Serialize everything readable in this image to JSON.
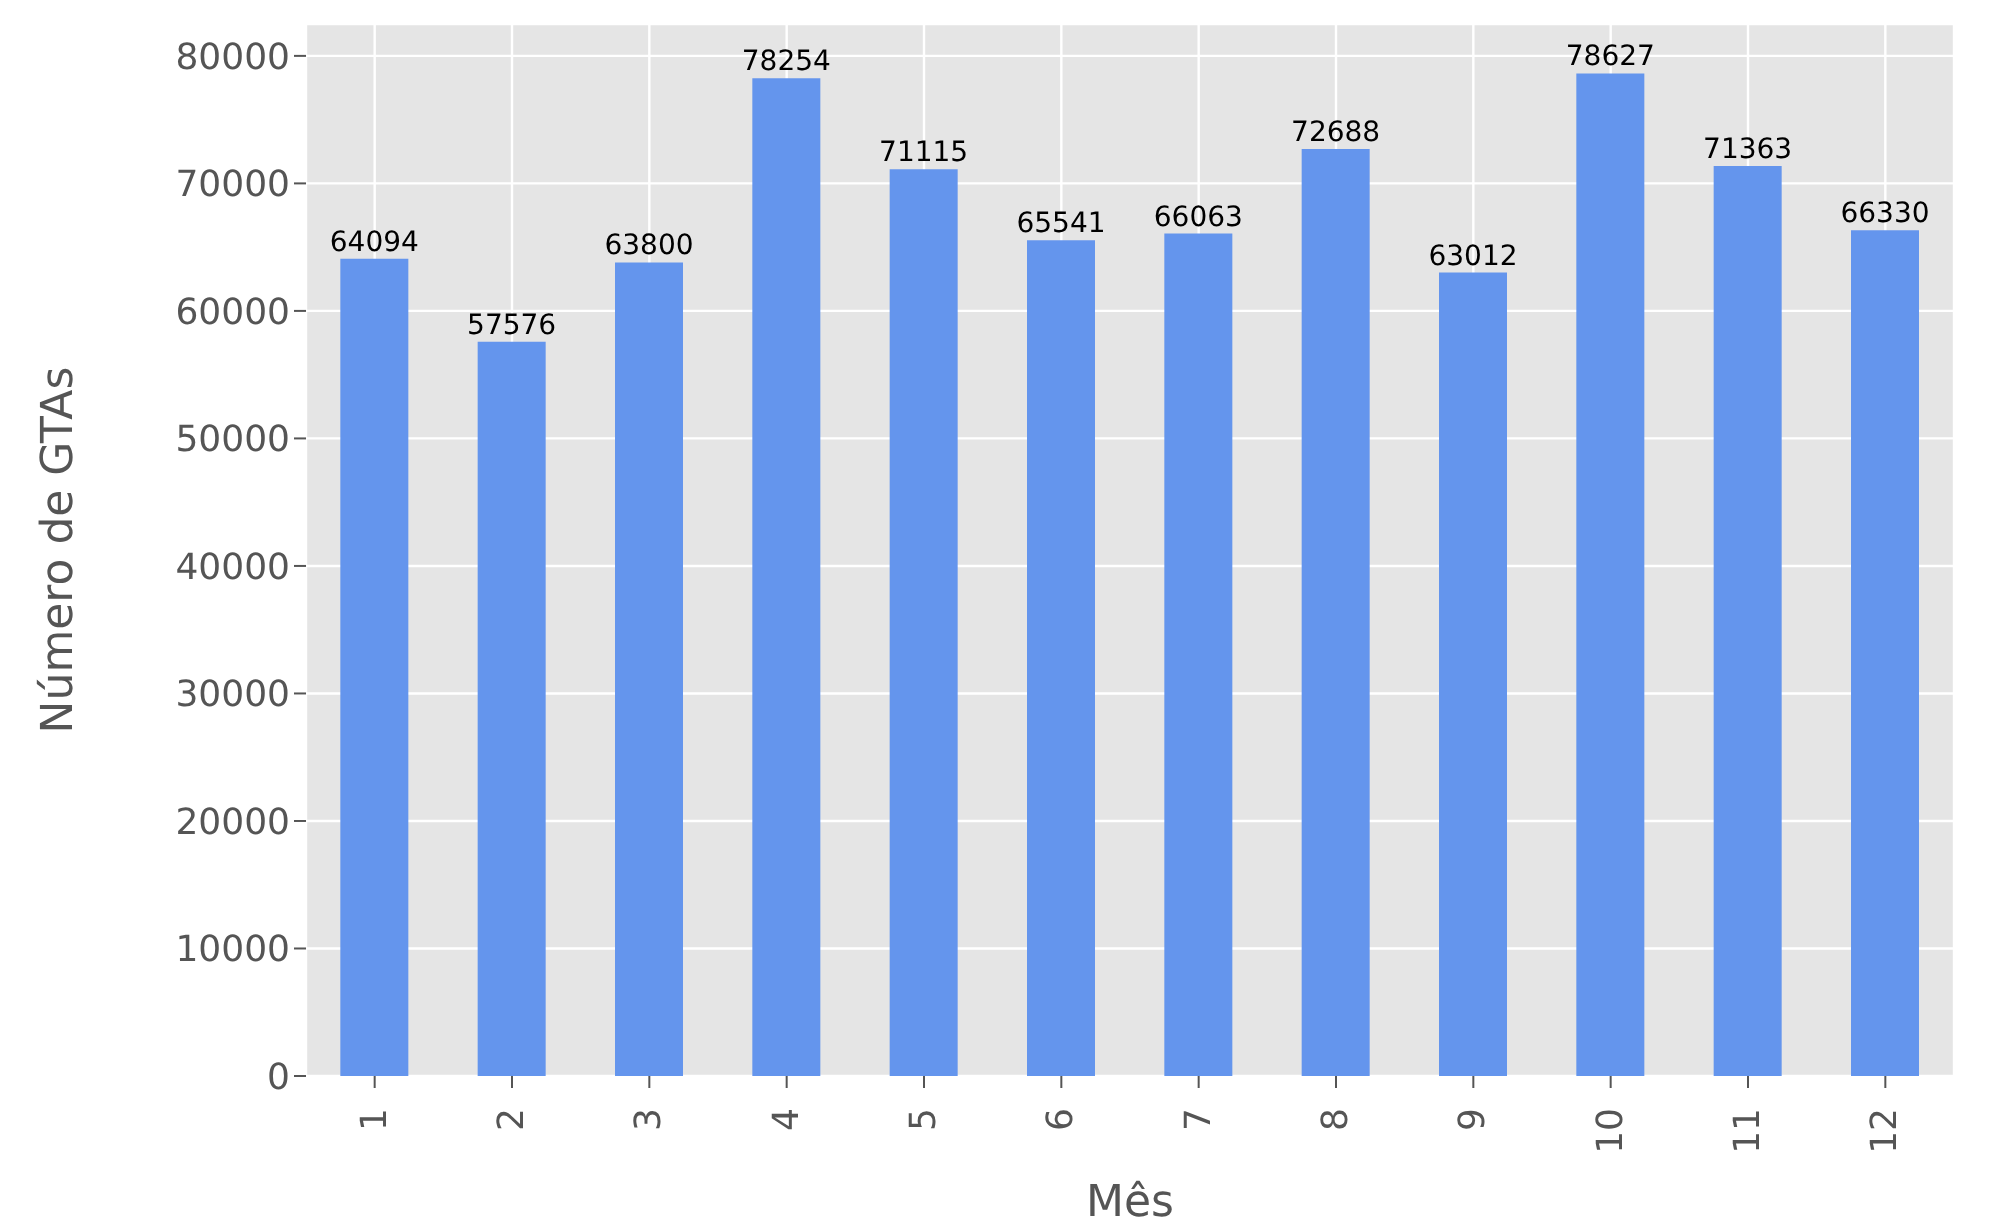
{
  "chart_data": {
    "type": "bar",
    "xlabel": "Mês",
    "ylabel": "Número de GTAs",
    "categories": [
      "1",
      "2",
      "3",
      "4",
      "5",
      "6",
      "7",
      "8",
      "9",
      "10",
      "11",
      "12"
    ],
    "values": [
      64094,
      57576,
      63800,
      78254,
      71115,
      65541,
      66063,
      72688,
      63012,
      78627,
      71363,
      66330
    ],
    "color": "#6495ed",
    "ylim": [
      0,
      82500
    ],
    "yticks": [
      0,
      10000,
      20000,
      30000,
      40000,
      50000,
      60000,
      70000,
      80000
    ],
    "grid": true,
    "data_labels": true
  }
}
